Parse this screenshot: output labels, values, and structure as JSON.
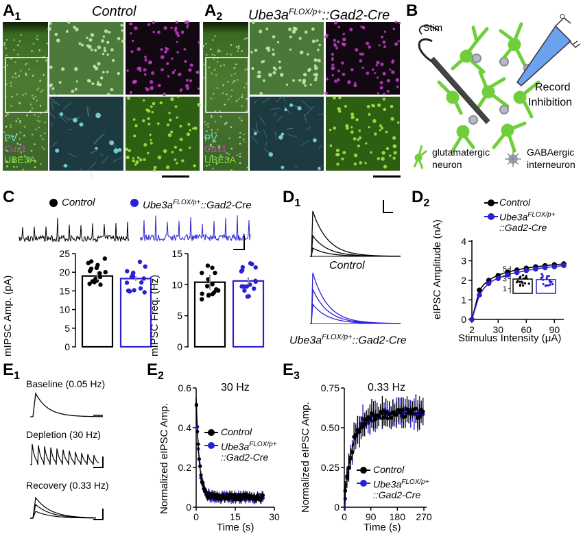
{
  "panels": {
    "A1": {
      "letter": "A",
      "sub": "1",
      "title": "Control",
      "channels": {
        "pv": "PV",
        "cux1": "Cux1",
        "ube3a": "UBE3A"
      }
    },
    "A2": {
      "letter": "A",
      "sub": "2",
      "title_base": "Ube3a",
      "title_sup": "FLOX/p+",
      "title_rest": "::Gad2-Cre",
      "channels": {
        "pv": "PV",
        "cux1": "Cux1",
        "ube3a": "UBE3A"
      }
    },
    "B": {
      "letter": "B",
      "stim": "Stim",
      "record_line1": "Record",
      "record_line2": "Inhibition",
      "legend_glut_1": "glutamatergic",
      "legend_glut_2": "neuron",
      "legend_gaba_1": "GABAergic",
      "legend_gaba_2": "interneuron"
    },
    "C": {
      "letter": "C",
      "control": "Control",
      "mut_base": "Ube3a",
      "mut_sup": "FLOX/p+",
      "mut_rest": "::Gad2-Cre"
    },
    "D1": {
      "letter": "D",
      "sub": "1",
      "control": "Control",
      "mut_base": "Ube3a",
      "mut_sup": "FLOX/p+",
      "mut_rest": "::Gad2-Cre"
    },
    "D2": {
      "letter": "D",
      "sub": "2",
      "control": "Control",
      "mut_base": "Ube3a",
      "mut_sup": "FLOX/p+",
      "mut_rest": "::Gad2-Cre"
    },
    "E1": {
      "letter": "E",
      "sub": "1",
      "baseline": "Baseline (0.05 Hz)",
      "depletion": "Depletion (30 Hz)",
      "recovery": "Recovery (0.33 Hz)"
    },
    "E2": {
      "letter": "E",
      "sub": "2",
      "freq": "30 Hz",
      "control": "Control",
      "mut_base": "Ube3a",
      "mut_sup": "FLOX/p+",
      "mut_rest": "::Gad2-Cre"
    },
    "E3": {
      "letter": "E",
      "sub": "3",
      "freq": "0.33 Hz",
      "control": "Control",
      "mut_base": "Ube3a",
      "mut_sup": "FLOX/p+",
      "mut_rest": "::Gad2-Cre"
    }
  },
  "colors": {
    "control": "#000000",
    "mutant": "#2b1fd6",
    "pv": "#5fe0e8",
    "cux1": "#d23cd6",
    "ube3a": "#7fe03a"
  },
  "chart_data": [
    {
      "id": "C_amp",
      "type": "bar",
      "ylabel": "mIPSC Amp. (pA)",
      "ylim": [
        0,
        25
      ],
      "yticks": [
        "0",
        "5",
        "10",
        "15",
        "20",
        "25"
      ],
      "categories": [
        "Control",
        "Ube3aFLOX/p+::Gad2-Cre"
      ],
      "values": [
        19,
        18.3
      ],
      "sem": [
        1.2,
        0.6
      ]
    },
    {
      "id": "C_freq",
      "type": "bar",
      "ylabel": "mIPSC Freq. (Hz)",
      "ylim": [
        0,
        15
      ],
      "yticks": [
        "0",
        "5",
        "10",
        "15"
      ],
      "categories": [
        "Control",
        "Ube3aFLOX/p+::Gad2-Cre"
      ],
      "values": [
        10.4,
        10.6
      ],
      "sem": [
        1.2,
        0.6
      ]
    },
    {
      "id": "D2",
      "type": "line",
      "xlabel": "Stimulus Intensity (μA)",
      "ylabel": "eIPSC Amplitude (nA)",
      "xlim": [
        2,
        100
      ],
      "ylim": [
        0,
        4
      ],
      "xticks": [
        "2",
        "30",
        "60",
        "90"
      ],
      "yticks": [
        "0",
        "1",
        "2",
        "3",
        "4"
      ],
      "x": [
        2,
        10,
        15,
        20,
        25,
        30,
        35,
        40,
        45,
        50,
        55,
        60,
        65,
        70,
        75,
        80,
        85,
        90,
        95,
        100
      ],
      "series": [
        {
          "name": "Control",
          "values": [
            0,
            1.5,
            1.8,
            2.0,
            2.15,
            2.25,
            2.35,
            2.42,
            2.48,
            2.53,
            2.58,
            2.62,
            2.66,
            2.69,
            2.72,
            2.75,
            2.78,
            2.8,
            2.82,
            2.84
          ]
        },
        {
          "name": "Ube3aFLOX/p+::Gad2-Cre",
          "values": [
            0,
            1.25,
            1.6,
            1.85,
            2.0,
            2.1,
            2.2,
            2.28,
            2.35,
            2.4,
            2.45,
            2.5,
            2.54,
            2.58,
            2.62,
            2.65,
            2.68,
            2.7,
            2.73,
            2.76
          ]
        }
      ],
      "inset": {
        "type": "bar",
        "yticks": [
          "1",
          "3",
          "5"
        ],
        "values": [
          2.9,
          2.8
        ]
      }
    },
    {
      "id": "E2",
      "type": "scatter",
      "xlabel": "Time (s)",
      "ylabel": "Normalized eIPSC Amp.",
      "xlim": [
        0,
        30
      ],
      "ylim": [
        0,
        0.6
      ],
      "xticks": [
        "0",
        "15",
        "30"
      ],
      "yticks": [
        "0",
        "0.2",
        "0.4",
        "0.6"
      ],
      "series": [
        {
          "name": "Control"
        },
        {
          "name": "Ube3aFLOX/p+::Gad2-Cre"
        }
      ]
    },
    {
      "id": "E3",
      "type": "scatter",
      "xlabel": "Time (s)",
      "ylabel": "Normalized eIPSC Amp.",
      "xlim": [
        0,
        270
      ],
      "ylim": [
        0,
        0.75
      ],
      "xticks": [
        "0",
        "90",
        "180",
        "270"
      ],
      "yticks": [
        "0",
        "0.25",
        "0.50",
        "0.75"
      ],
      "series": [
        {
          "name": "Control"
        },
        {
          "name": "Ube3aFLOX/p+::Gad2-Cre"
        }
      ]
    }
  ]
}
